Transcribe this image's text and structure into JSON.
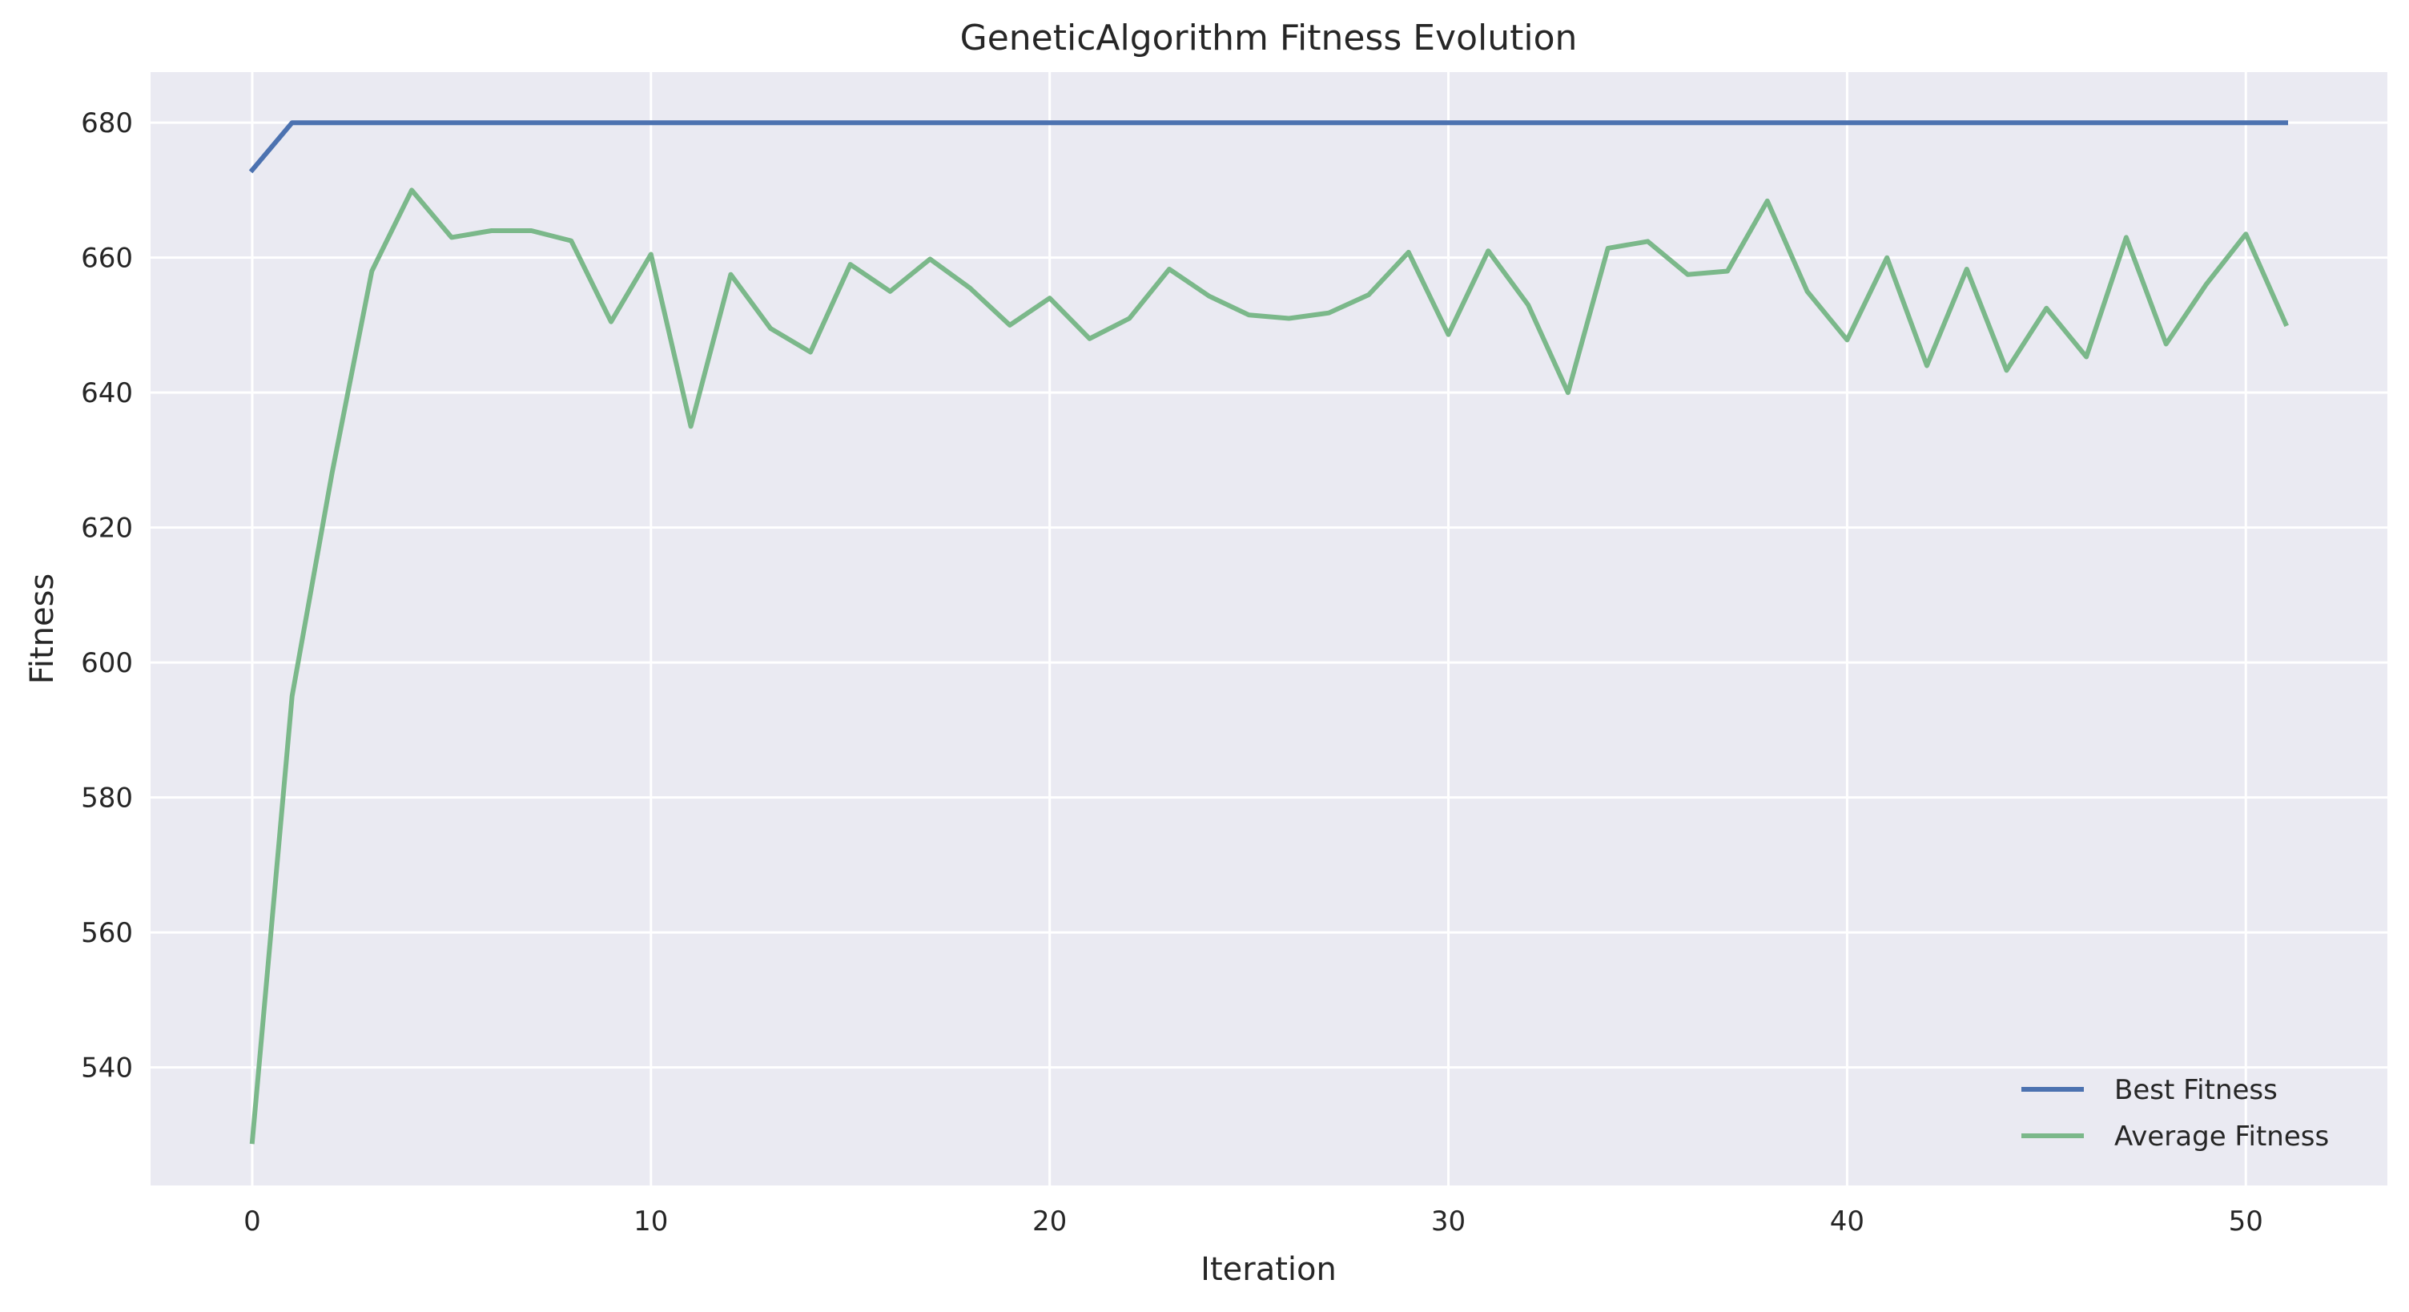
{
  "chart_data": {
    "type": "line",
    "title": "GeneticAlgorithm Fitness Evolution",
    "xlabel": "Iteration",
    "ylabel": "Fitness",
    "xlim": [
      -2.55,
      53.55
    ],
    "ylim": [
      522.5,
      687.5
    ],
    "xticks": [
      0,
      10,
      20,
      30,
      40,
      50
    ],
    "yticks": [
      540,
      560,
      580,
      600,
      620,
      640,
      660,
      680
    ],
    "grid": true,
    "legend_position": "bottom-right",
    "x": [
      0,
      1,
      2,
      3,
      4,
      5,
      6,
      7,
      8,
      9,
      10,
      11,
      12,
      13,
      14,
      15,
      16,
      17,
      18,
      19,
      20,
      21,
      22,
      23,
      24,
      25,
      26,
      27,
      28,
      29,
      30,
      31,
      32,
      33,
      34,
      35,
      36,
      37,
      38,
      39,
      40,
      41,
      42,
      43,
      44,
      45,
      46,
      47,
      48,
      49,
      50,
      51
    ],
    "series": [
      {
        "name": "Best Fitness",
        "color": "#4c72b0",
        "values": [
          673,
          680,
          680,
          680,
          680,
          680,
          680,
          680,
          680,
          680,
          680,
          680,
          680,
          680,
          680,
          680,
          680,
          680,
          680,
          680,
          680,
          680,
          680,
          680,
          680,
          680,
          680,
          680,
          680,
          680,
          680,
          680,
          680,
          680,
          680,
          680,
          680,
          680,
          680,
          680,
          680,
          680,
          680,
          680,
          680,
          680,
          680,
          680,
          680,
          680,
          680,
          680
        ]
      },
      {
        "name": "Average Fitness",
        "color": "#7bb88a",
        "values": [
          529,
          595,
          628,
          658,
          670,
          663,
          664,
          664,
          662.5,
          650.5,
          660.5,
          635,
          657.5,
          649.5,
          646,
          659,
          655,
          659.8,
          655.5,
          650,
          654,
          648,
          651,
          658.3,
          654.3,
          651.5,
          651,
          651.8,
          654.5,
          660.8,
          648.6,
          661,
          653,
          640,
          661.4,
          662.4,
          657.5,
          658,
          668.4,
          655,
          647.8,
          660,
          644,
          658.3,
          643.3,
          652.5,
          645.3,
          663,
          647.2,
          656,
          663.5,
          650.2
        ]
      }
    ]
  }
}
